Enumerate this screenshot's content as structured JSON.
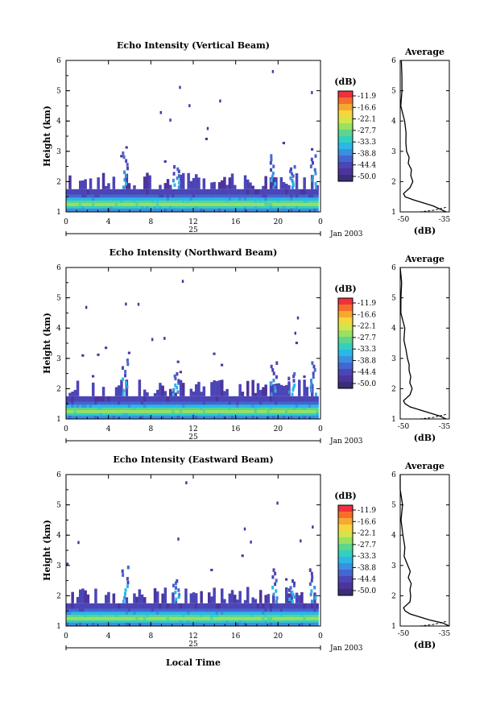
{
  "figure": {
    "date_label": "Jan 2003",
    "day_label": "25",
    "x_axis_label": "Local Time"
  },
  "colorbar": {
    "unit": "(dB)",
    "tick_labels": [
      "-11.9",
      "-16.6",
      "-22.1",
      "-27.7",
      "-33.3",
      "-38.8",
      "-44.4",
      "-50.0"
    ],
    "colors": [
      "#f0303a",
      "#f56e2a",
      "#f7a830",
      "#f5d63c",
      "#d2e64c",
      "#9ae061",
      "#5cd58d",
      "#33d0c0",
      "#2bb7e8",
      "#3b8fe0",
      "#4466d0",
      "#4c45b6",
      "#4d349c",
      "#3c2d78"
    ]
  },
  "chart_data": [
    {
      "type": "heatmap",
      "title": "Echo Intensity (Vertical Beam)",
      "xlabel": "",
      "ylabel": "Height (km)",
      "xlim": [
        0,
        24
      ],
      "ylim": [
        1,
        6
      ],
      "x_ticks": [
        "0",
        "4",
        "8",
        "12",
        "16",
        "20",
        "0"
      ],
      "y_ticks": [
        "1",
        "2",
        "3",
        "4",
        "5",
        "6"
      ],
      "value_unit": "dB",
      "value_range": [
        -50.0,
        -11.9
      ],
      "profile": {
        "title": "Average",
        "xlabel": "(dB)",
        "x_ticks": [
          "-50",
          "-35"
        ],
        "xlim": [
          -50,
          -35
        ],
        "heights": [
          1.0,
          1.1,
          1.2,
          1.3,
          1.4,
          1.5,
          1.6,
          1.7,
          1.8,
          2.0,
          2.2,
          2.4,
          2.6,
          2.8,
          3.0,
          3.3,
          3.6,
          4.0,
          4.5,
          5.0,
          5.5,
          6.0
        ],
        "values": [
          -36,
          -38,
          -40,
          -43,
          -46,
          -48.5,
          -49,
          -48,
          -47,
          -46.5,
          -47,
          -46.5,
          -47.5,
          -47,
          -48,
          -48,
          -48.5,
          -49,
          -49.5,
          -49.5,
          -49.8,
          -50
        ]
      }
    },
    {
      "type": "heatmap",
      "title": "Echo Intensity (Northward Beam)",
      "xlabel": "",
      "ylabel": "Height (km)",
      "xlim": [
        0,
        24
      ],
      "ylim": [
        1,
        6
      ],
      "x_ticks": [
        "0",
        "4",
        "8",
        "12",
        "16",
        "20",
        "0"
      ],
      "y_ticks": [
        "1",
        "2",
        "3",
        "4",
        "5",
        "6"
      ],
      "value_unit": "dB",
      "value_range": [
        -50.0,
        -11.9
      ],
      "profile": {
        "title": "Average",
        "xlabel": "(dB)",
        "x_ticks": [
          "-50",
          "-35"
        ],
        "xlim": [
          -50,
          -35
        ],
        "heights": [
          1.0,
          1.1,
          1.2,
          1.3,
          1.4,
          1.5,
          1.6,
          1.7,
          1.8,
          2.0,
          2.2,
          2.4,
          2.6,
          2.8,
          3.0,
          3.3,
          3.6,
          4.0,
          4.5,
          5.0,
          5.5,
          6.0
        ],
        "values": [
          -36,
          -38,
          -41,
          -44,
          -47,
          -48.5,
          -49,
          -48,
          -47,
          -46.5,
          -47,
          -47,
          -47.5,
          -47.5,
          -48,
          -48.5,
          -48.5,
          -49,
          -49.5,
          -49.5,
          -49.8,
          -50
        ]
      }
    },
    {
      "type": "heatmap",
      "title": "Echo Intensity (Eastward Beam)",
      "xlabel": "Local Time",
      "ylabel": "Height (km)",
      "xlim": [
        0,
        24
      ],
      "ylim": [
        1,
        6
      ],
      "x_ticks": [
        "0",
        "4",
        "8",
        "12",
        "16",
        "20",
        "0"
      ],
      "y_ticks": [
        "1",
        "2",
        "3",
        "4",
        "5",
        "6"
      ],
      "value_unit": "dB",
      "value_range": [
        -50.0,
        -11.9
      ],
      "profile": {
        "title": "Average",
        "xlabel": "(dB)",
        "x_ticks": [
          "-50",
          "-35"
        ],
        "xlim": [
          -50,
          -35
        ],
        "heights": [
          1.0,
          1.1,
          1.2,
          1.3,
          1.4,
          1.5,
          1.6,
          1.7,
          1.8,
          2.0,
          2.2,
          2.4,
          2.6,
          2.8,
          3.0,
          3.3,
          3.6,
          4.0,
          4.5,
          5.0,
          5.5,
          6.0
        ],
        "values": [
          -35,
          -37,
          -41,
          -44,
          -47,
          -48.5,
          -49,
          -48,
          -47,
          -46.5,
          -47,
          -47,
          -47.5,
          -47,
          -48,
          -48.5,
          -48.5,
          -49,
          -49.5,
          -49.5,
          -49.8,
          -50
        ]
      }
    }
  ]
}
